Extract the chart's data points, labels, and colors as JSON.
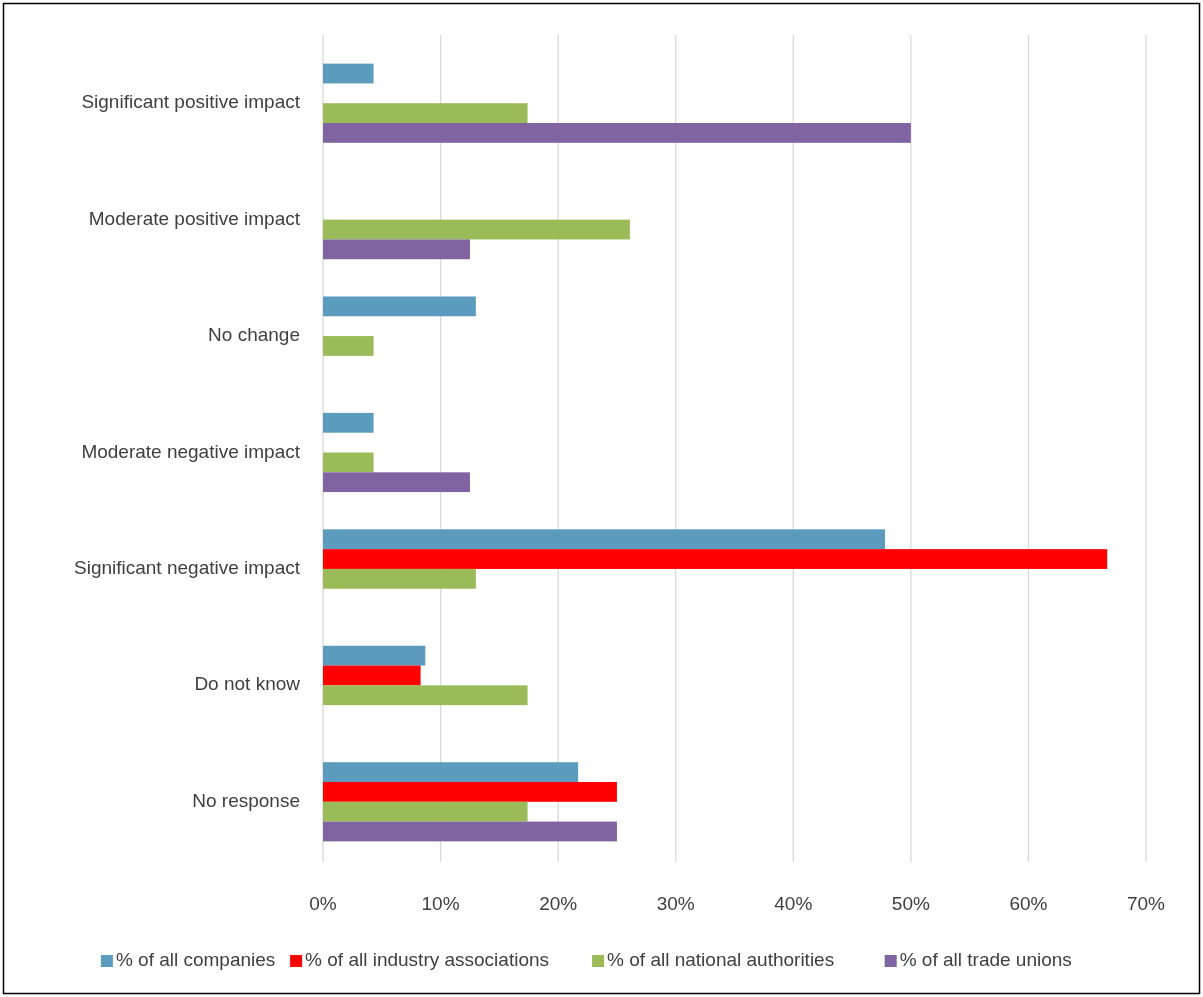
{
  "chart_data": {
    "type": "bar",
    "orientation": "horizontal",
    "categories": [
      "Significant positive impact",
      "Moderate positive impact",
      "No change",
      "Moderate negative impact",
      "Significant negative impact",
      "Do not know",
      "No response"
    ],
    "series": [
      {
        "name": "% of all companies",
        "color": "#5b9bbd",
        "values": [
          4.3,
          0,
          13.0,
          4.3,
          47.8,
          8.7,
          21.7
        ]
      },
      {
        "name": "% of all industry associations",
        "color": "#ff0000",
        "values": [
          0,
          0,
          0,
          0,
          66.7,
          8.3,
          25.0
        ]
      },
      {
        "name": "% of all national authorities",
        "color": "#9bbb59",
        "values": [
          17.4,
          26.1,
          4.3,
          4.3,
          13.0,
          17.4,
          17.4
        ]
      },
      {
        "name": "% of all trade unions",
        "color": "#8064a2",
        "values": [
          50.0,
          12.5,
          0,
          12.5,
          0,
          0,
          25.0
        ]
      }
    ],
    "xlim": [
      0,
      70
    ],
    "xticks": [
      {
        "value": 0,
        "label": "0%"
      },
      {
        "value": 10,
        "label": "10%"
      },
      {
        "value": 20,
        "label": "20%"
      },
      {
        "value": 30,
        "label": "30%"
      },
      {
        "value": 40,
        "label": "40%"
      },
      {
        "value": 50,
        "label": "50%"
      },
      {
        "value": 60,
        "label": "60%"
      },
      {
        "value": 70,
        "label": "70%"
      }
    ],
    "grid": "x",
    "legend": "bottom"
  }
}
